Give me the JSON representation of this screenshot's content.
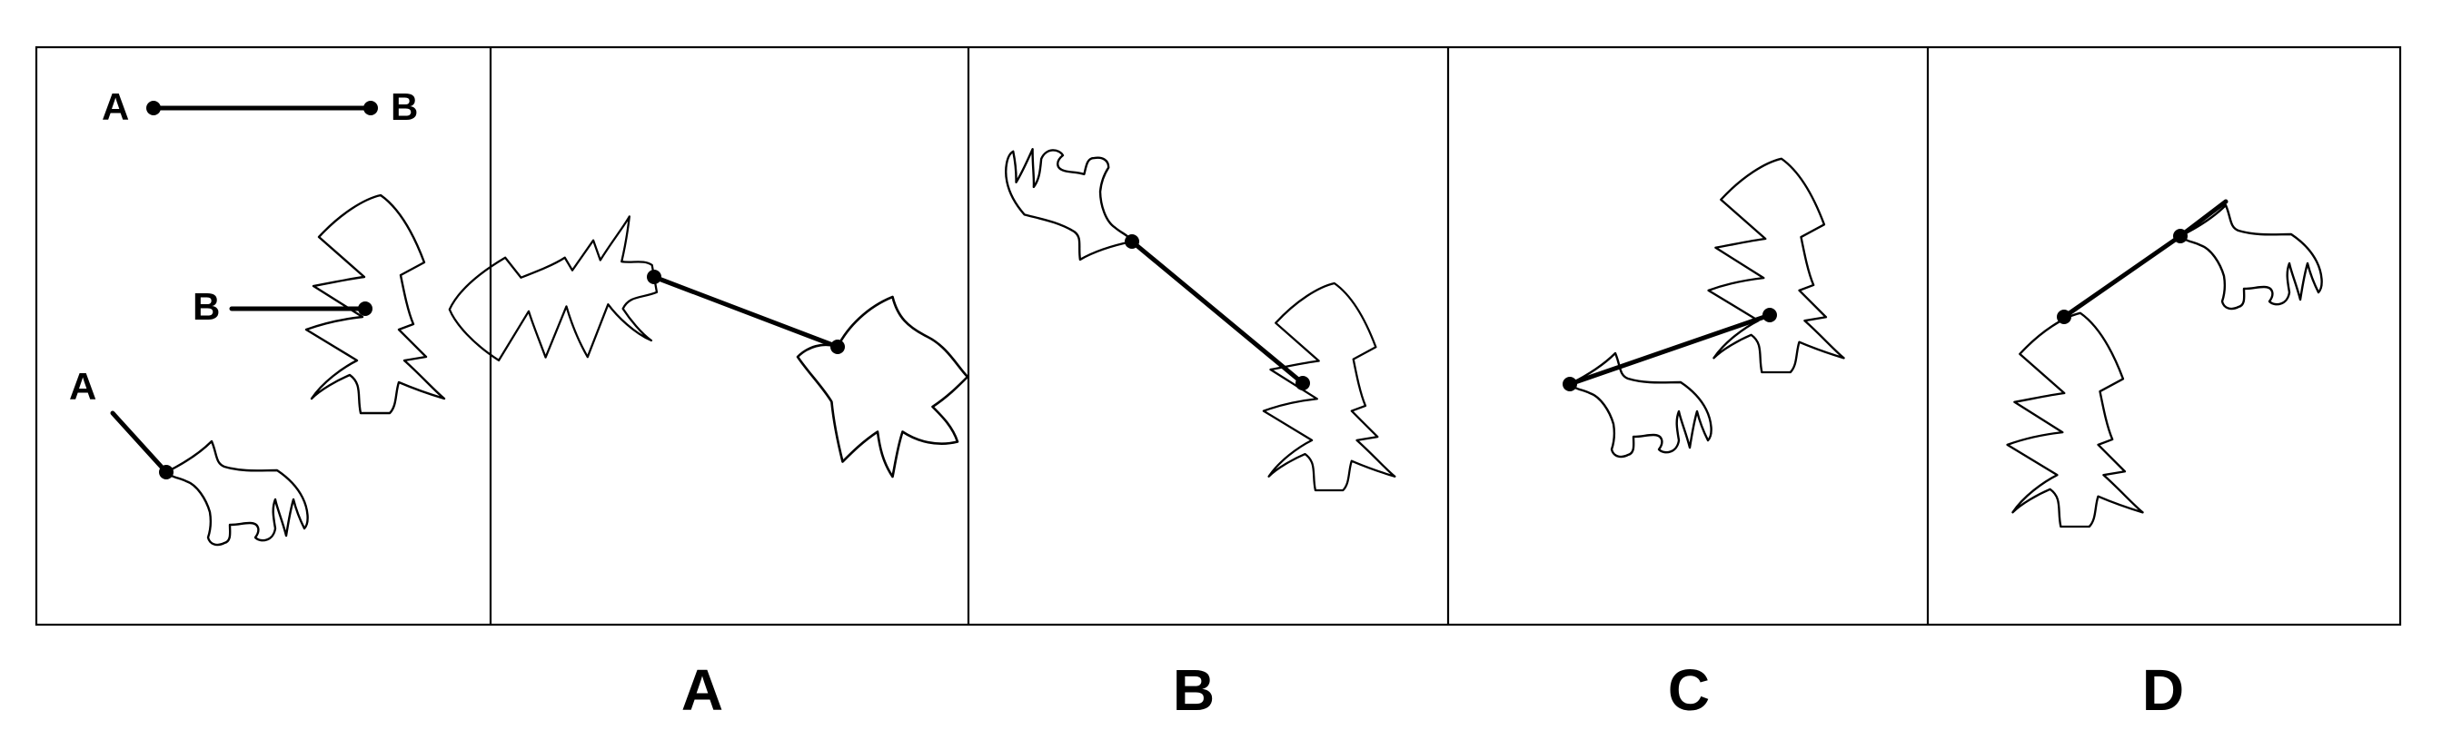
{
  "puzzle": {
    "reference_labels": {
      "segment_start": "A",
      "segment_end": "B",
      "tree_label": "B",
      "animal_label": "A"
    },
    "options": [
      "A",
      "B",
      "C",
      "D"
    ]
  }
}
